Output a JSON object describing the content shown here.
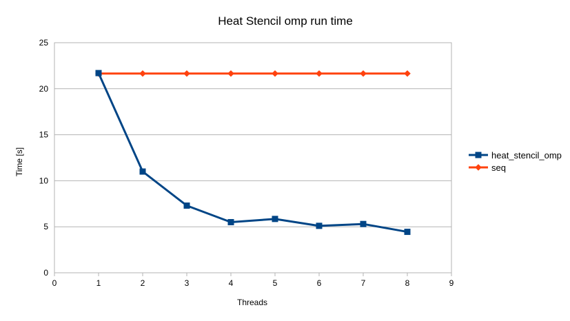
{
  "chart_data": {
    "type": "line",
    "title": "Heat Stencil omp run time",
    "xlabel": "Threads",
    "ylabel": "Time [s]",
    "xlim": [
      0,
      9
    ],
    "ylim": [
      0,
      25
    ],
    "xticks": [
      0,
      1,
      2,
      3,
      4,
      5,
      6,
      7,
      8,
      9
    ],
    "yticks": [
      0,
      5,
      10,
      15,
      20,
      25
    ],
    "grid": "horizontal",
    "legend_position": "right",
    "series": [
      {
        "name": "heat_stencil_omp",
        "color": "#004586",
        "marker": "square",
        "x": [
          1,
          2,
          3,
          4,
          5,
          6,
          7,
          8
        ],
        "y": [
          21.7,
          11.0,
          7.3,
          5.5,
          5.85,
          5.1,
          5.3,
          4.45
        ]
      },
      {
        "name": "seq",
        "color": "#ff420e",
        "marker": "diamond",
        "x": [
          1,
          2,
          3,
          4,
          5,
          6,
          7,
          8
        ],
        "y": [
          21.65,
          21.65,
          21.65,
          21.65,
          21.65,
          21.65,
          21.65,
          21.65
        ]
      }
    ]
  }
}
